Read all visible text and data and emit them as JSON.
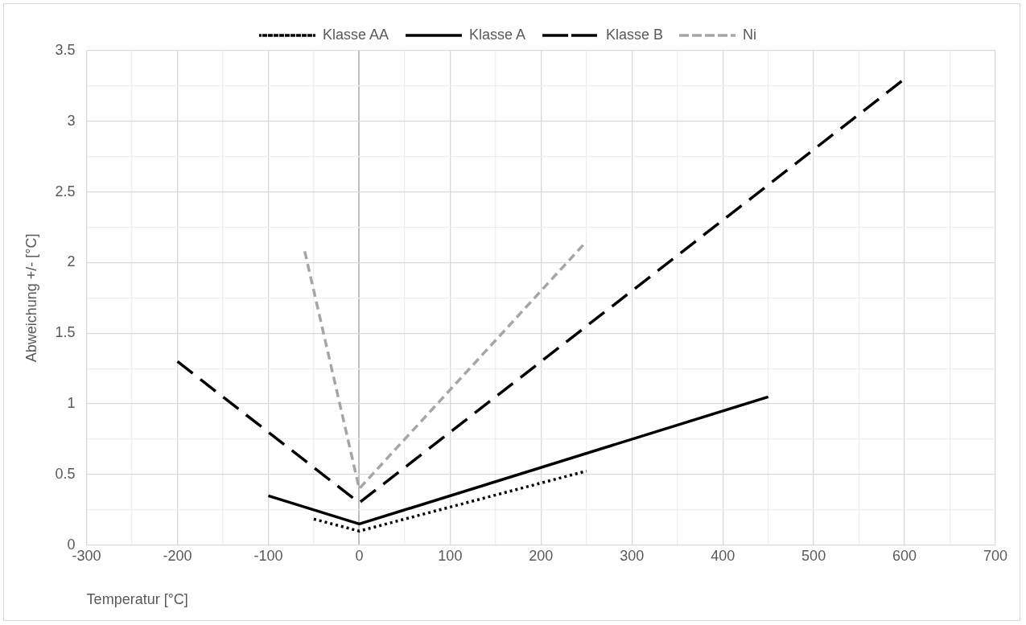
{
  "chart_data": {
    "type": "line",
    "xlabel": "Temperatur [°C]",
    "ylabel": "Abweichung +/- [°C]",
    "xlim": [
      -300,
      700
    ],
    "ylim": [
      0,
      3.5
    ],
    "xticks": [
      -300,
      {
        "value": -250,
        "label": null
      },
      -200,
      {
        "value": -150,
        "label": null
      },
      -100,
      {
        "value": -50,
        "label": null
      },
      0,
      {
        "value": 50,
        "label": null
      },
      100,
      {
        "value": 150,
        "label": null
      },
      200,
      {
        "value": 250,
        "label": null
      },
      300,
      {
        "value": 350,
        "label": null
      },
      400,
      {
        "value": 450,
        "label": null
      },
      500,
      {
        "value": 550,
        "label": null
      },
      600,
      {
        "value": 650,
        "label": null
      },
      700
    ],
    "yticks": [
      0,
      {
        "value": 0.25,
        "label": null
      },
      0.5,
      {
        "value": 0.75,
        "label": null
      },
      1,
      {
        "value": 1.25,
        "label": null
      },
      1.5,
      {
        "value": 1.75,
        "label": null
      },
      2,
      {
        "value": 2.25,
        "label": null
      },
      2.5,
      {
        "value": 2.75,
        "label": null
      },
      3,
      {
        "value": 3.25,
        "label": null
      },
      3.5
    ],
    "grid": true,
    "legend": "top",
    "marker": "none",
    "series": [
      {
        "name": "Klasse AA",
        "color": "#000000",
        "line_style": "dotted",
        "x": [
          -50,
          0,
          250
        ],
        "values": [
          0.185,
          0.1,
          0.525
        ]
      },
      {
        "name": "Klasse A",
        "color": "#000000",
        "line_style": "solid",
        "x": [
          -100,
          0,
          450
        ],
        "values": [
          0.35,
          0.15,
          1.05
        ]
      },
      {
        "name": "Klasse B",
        "color": "#000000",
        "line_style": "dashed",
        "x": [
          -200,
          0,
          600
        ],
        "values": [
          1.3,
          0.3,
          3.3
        ]
      },
      {
        "name": "Ni",
        "color": "#a6a6a6",
        "line_style": "dashed",
        "x": [
          -60,
          0,
          250
        ],
        "values": [
          2.08,
          0.4,
          2.15
        ]
      }
    ]
  }
}
